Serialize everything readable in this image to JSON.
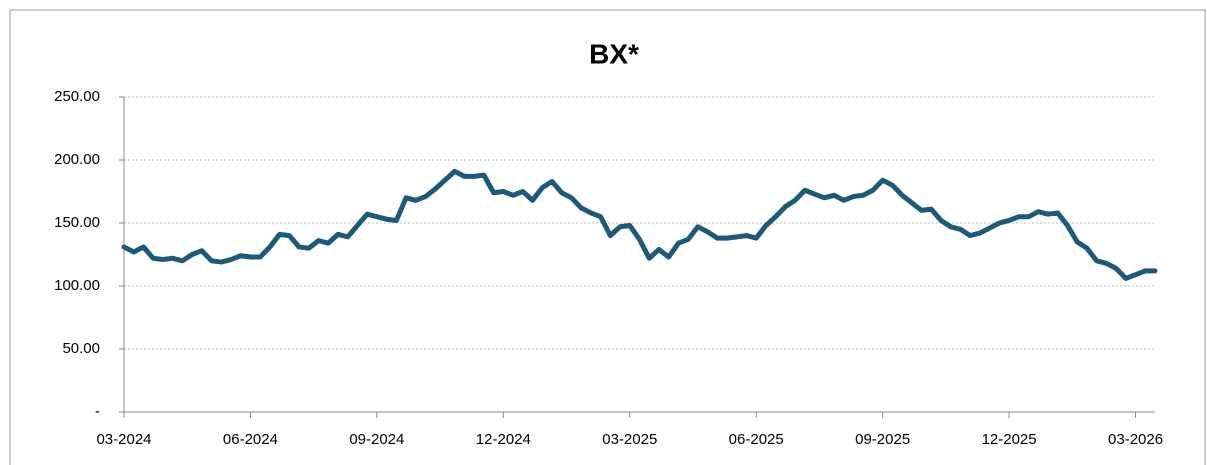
{
  "chart_data": {
    "type": "line",
    "title": "BX*",
    "color": "#1d5a7a",
    "values": [
      131,
      127,
      131,
      122,
      121,
      122,
      120,
      125,
      128,
      120,
      119,
      121,
      124,
      123,
      123,
      131,
      141,
      140,
      131,
      130,
      136,
      134,
      141,
      139,
      148,
      157,
      155,
      153,
      152,
      170,
      168,
      171,
      177,
      184,
      191,
      187,
      187,
      188,
      174,
      175,
      172,
      175,
      168,
      178,
      183,
      174,
      170,
      162,
      158,
      155,
      140,
      147,
      148,
      137,
      122,
      129,
      123,
      134,
      137,
      147,
      143,
      138,
      138,
      139,
      140,
      138,
      148,
      155,
      163,
      168,
      176,
      173,
      170,
      172,
      168,
      171,
      172,
      176,
      184,
      180,
      172,
      166,
      160,
      161,
      152,
      147,
      145,
      140,
      142,
      146,
      150,
      152,
      155,
      155,
      159,
      157,
      158,
      148,
      135,
      130,
      120,
      118,
      114,
      106,
      109,
      112,
      112
    ],
    "xlim": [
      0,
      106
    ],
    "xticks": [
      {
        "value": 0,
        "label": "03-2024"
      },
      {
        "value": 13,
        "label": "06-2024"
      },
      {
        "value": 26,
        "label": "09-2024"
      },
      {
        "value": 39,
        "label": "12-2024"
      },
      {
        "value": 52,
        "label": "03-2025"
      },
      {
        "value": 65,
        "label": "06-2025"
      },
      {
        "value": 78,
        "label": "09-2025"
      },
      {
        "value": 91,
        "label": "12-2025"
      },
      {
        "value": 104,
        "label": "03-2026"
      }
    ],
    "ylim": [
      0,
      250
    ],
    "yticks": [
      {
        "value": 0,
        "label": "-"
      },
      {
        "value": 50,
        "label": "50.00"
      },
      {
        "value": 100,
        "label": "100.00"
      },
      {
        "value": 150,
        "label": "150.00"
      },
      {
        "value": 200,
        "label": "200.00"
      },
      {
        "value": 250,
        "label": "250.00"
      }
    ],
    "grid": true
  }
}
